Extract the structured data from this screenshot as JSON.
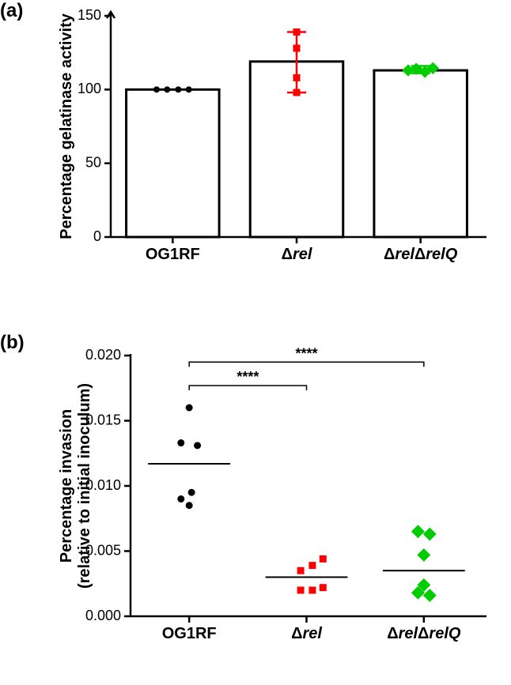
{
  "panelA": {
    "label": "(a)",
    "type": "bar+scatter",
    "ylabel": "Percentage gelatinase activity",
    "ylim": [
      0,
      150
    ],
    "yticks": [
      0,
      50,
      100,
      150
    ],
    "background_color": "#ffffff",
    "axis_color": "#000000",
    "bar_width": 0.75,
    "bar_fill": "#ffffff",
    "bar_stroke": "#000000",
    "bar_stroke_width": 3,
    "categories": [
      {
        "label": "OG1RF",
        "italic": false,
        "prefix": ""
      },
      {
        "label": "rel",
        "italic": true,
        "prefix": "Δ"
      },
      {
        "label": "relΔrelQ",
        "italic": true,
        "prefix": "Δ"
      }
    ],
    "bars": [
      100,
      119,
      113
    ],
    "error_bars": [
      {
        "low": null,
        "high": null
      },
      {
        "low": 98,
        "high": 139
      },
      {
        "low": 111,
        "high": 116
      }
    ],
    "cap_width": 12,
    "series": [
      {
        "marker": "circle",
        "color": "#000000",
        "size": 8,
        "values": [
          100,
          100,
          100,
          100
        ],
        "x_jitter": [
          -0.13,
          -0.045,
          0.045,
          0.13
        ]
      },
      {
        "marker": "square",
        "color": "#ff0000",
        "size": 9,
        "values": [
          139,
          128,
          108,
          98
        ],
        "x_jitter": [
          0,
          0,
          0,
          0
        ]
      },
      {
        "marker": "diamond",
        "color": "#00cc00",
        "size": 10,
        "values": [
          113,
          114,
          112,
          114.5
        ],
        "x_jitter": [
          -0.1,
          -0.035,
          0.035,
          0.1
        ]
      }
    ],
    "label_fontsize": 20,
    "tick_fontsize": 18
  },
  "panelB": {
    "label": "(b)",
    "type": "scatter",
    "ylabel_line1": "Percentage invasion",
    "ylabel_line2": "(relative to initial inoculum)",
    "ylim": [
      0.0,
      0.02
    ],
    "yticks": [
      0.0,
      0.005,
      0.01,
      0.015,
      0.02
    ],
    "ytick_labels": [
      "0.000",
      "0.005",
      "0.010",
      "0.015",
      "0.020"
    ],
    "background_color": "#ffffff",
    "axis_color": "#000000",
    "categories": [
      {
        "label": "OG1RF",
        "italic": false,
        "prefix": ""
      },
      {
        "label": "rel",
        "italic": true,
        "prefix": "Δ"
      },
      {
        "label": "relΔrelQ",
        "italic": true,
        "prefix": "Δ"
      }
    ],
    "medians": [
      0.0117,
      0.003,
      0.0035
    ],
    "median_line_width": 2,
    "median_color": "#000000",
    "series": [
      {
        "marker": "circle",
        "color": "#000000",
        "size": 9,
        "points": [
          {
            "x": 0.0,
            "y": 0.016
          },
          {
            "x": -0.07,
            "y": 0.0133
          },
          {
            "x": 0.07,
            "y": 0.0131
          },
          {
            "x": 0.02,
            "y": 0.0095
          },
          {
            "x": -0.07,
            "y": 0.009
          },
          {
            "x": 0.0,
            "y": 0.0085
          }
        ]
      },
      {
        "marker": "square",
        "color": "#ff0000",
        "size": 9,
        "points": [
          {
            "x": 0.14,
            "y": 0.0044
          },
          {
            "x": 0.05,
            "y": 0.0039
          },
          {
            "x": -0.05,
            "y": 0.0035
          },
          {
            "x": 0.14,
            "y": 0.0022
          },
          {
            "x": -0.05,
            "y": 0.002
          },
          {
            "x": 0.05,
            "y": 0.002
          }
        ]
      },
      {
        "marker": "diamond",
        "color": "#00cc00",
        "size": 11,
        "points": [
          {
            "x": -0.05,
            "y": 0.0065
          },
          {
            "x": 0.05,
            "y": 0.0063
          },
          {
            "x": 0.0,
            "y": 0.0047
          },
          {
            "x": 0.0,
            "y": 0.0024
          },
          {
            "x": -0.05,
            "y": 0.0018
          },
          {
            "x": 0.05,
            "y": 0.0016
          }
        ]
      }
    ],
    "annotations": [
      {
        "from": 0,
        "to": 1,
        "y": 0.0177,
        "text": "****"
      },
      {
        "from": 0,
        "to": 2,
        "y": 0.0195,
        "text": "****"
      }
    ],
    "annot_line_color": "#000000",
    "annot_line_width": 1.5,
    "label_fontsize": 20,
    "tick_fontsize": 18
  }
}
